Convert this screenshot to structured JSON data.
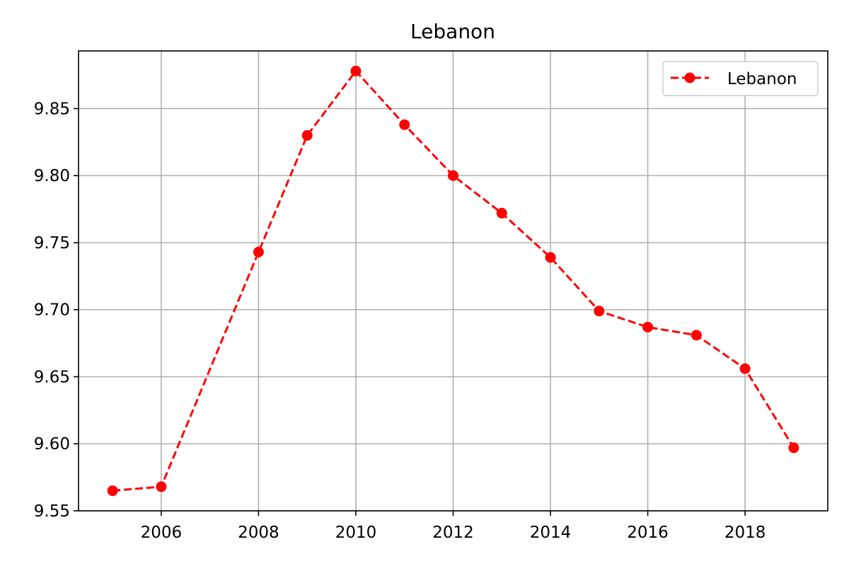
{
  "chart_data": {
    "type": "line",
    "title": "Lebanon",
    "xlabel": "",
    "ylabel": "",
    "x": [
      2005,
      2006,
      2008,
      2009,
      2010,
      2011,
      2012,
      2013,
      2014,
      2015,
      2016,
      2017,
      2018,
      2019
    ],
    "series": [
      {
        "name": "Lebanon",
        "values": [
          9.565,
          9.568,
          9.743,
          9.83,
          9.878,
          9.838,
          9.8,
          9.772,
          9.739,
          9.699,
          9.687,
          9.681,
          9.656,
          9.597
        ],
        "color": "#ff0000",
        "line_style": "dashed",
        "marker": "circle"
      }
    ],
    "xlim": [
      2004.3,
      2019.7
    ],
    "ylim": [
      9.55,
      9.893
    ],
    "x_ticks": [
      2006,
      2008,
      2010,
      2012,
      2014,
      2016,
      2018
    ],
    "x_tick_labels": [
      "2006",
      "2008",
      "2010",
      "2012",
      "2014",
      "2016",
      "2018"
    ],
    "y_ticks": [
      9.55,
      9.6,
      9.65,
      9.7,
      9.75,
      9.8,
      9.85
    ],
    "y_tick_labels": [
      "9.55",
      "9.60",
      "9.65",
      "9.70",
      "9.75",
      "9.80",
      "9.85"
    ],
    "grid": true,
    "legend_position": "top-right"
  }
}
